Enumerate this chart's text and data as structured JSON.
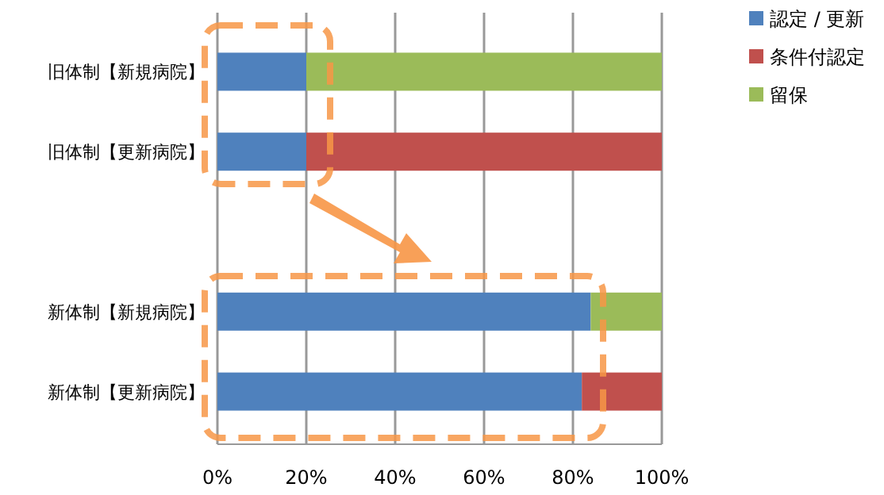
{
  "chart_data": {
    "type": "bar",
    "orientation": "horizontal",
    "stacked": true,
    "categories": [
      "旧体制【新規病院】",
      "旧体制【更新病院】",
      null,
      "新体制【新規病院】",
      "新体制【更新病院】"
    ],
    "series": [
      {
        "name": "認定 / 更新",
        "color": "#4f81bd",
        "values": [
          20,
          20,
          null,
          84,
          82
        ]
      },
      {
        "name": "条件付認定",
        "color": "#c0504d",
        "values": [
          0,
          80,
          null,
          0,
          18
        ]
      },
      {
        "name": "留保",
        "color": "#9bbb59",
        "values": [
          80,
          0,
          null,
          16,
          0
        ]
      }
    ],
    "xlim": [
      0,
      100
    ],
    "xticks": [
      {
        "value": 0,
        "label": "0%"
      },
      {
        "value": 20,
        "label": "20%"
      },
      {
        "value": 40,
        "label": "40%"
      },
      {
        "value": 60,
        "label": "60%"
      },
      {
        "value": 80,
        "label": "80%"
      },
      {
        "value": 100,
        "label": "100%"
      }
    ],
    "grid": "x",
    "legend": "right"
  }
}
